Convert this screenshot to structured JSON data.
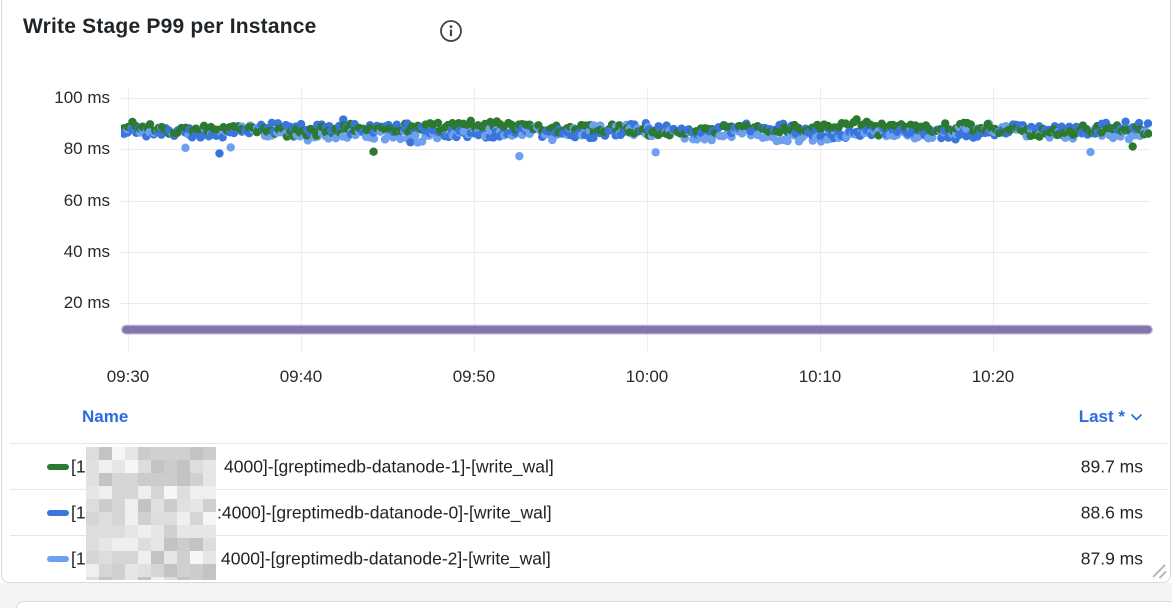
{
  "panel": {
    "title": "Write Stage P99 per Instance"
  },
  "chart_data": {
    "type": "scatter",
    "title": "Write Stage P99 per Instance",
    "x_ticks": [
      "09:30",
      "09:40",
      "09:50",
      "10:00",
      "10:10",
      "10:20"
    ],
    "y_ticks": [
      {
        "value": 100,
        "label": "100 ms"
      },
      {
        "value": 80,
        "label": "80 ms"
      },
      {
        "value": 60,
        "label": "60 ms"
      },
      {
        "value": 40,
        "label": "40 ms"
      },
      {
        "value": 20,
        "label": "20 ms"
      }
    ],
    "ylim": [
      0,
      104
    ],
    "grid": true,
    "legend_position": "bottom-table",
    "series": [
      {
        "name": "[1▒▒▒▒4000]-[greptimedb-datanode-1]-[write_wal]",
        "style": "points",
        "color": "#2c7a2f",
        "approx_mean_ms": 88.2,
        "jitter_ms": 1.7,
        "last": "89.7 ms"
      },
      {
        "name": "[1▒▒▒▒:4000]-[greptimedb-datanode-0]-[write_wal]",
        "style": "points",
        "color": "#3a75dc",
        "approx_mean_ms": 87.2,
        "jitter_ms": 1.9,
        "last": "88.6 ms"
      },
      {
        "name": "[1▒▒▒▒4000]-[greptimedb-datanode-2]-[write_wal]",
        "style": "points",
        "color": "#6ea0f0",
        "approx_mean_ms": 86.1,
        "jitter_ms": 2.0,
        "last": "87.9 ms"
      },
      {
        "name": "",
        "style": "line",
        "color": "#6d599c",
        "approx_mean_ms": 9.6,
        "last": ""
      }
    ]
  },
  "legend": {
    "name_header": "Name",
    "last_header": "Last *",
    "rows": [
      {
        "color": "#2c7a2f",
        "prefix": "[1",
        "redacted": true,
        "suffix": "4000]-[greptimedb-datanode-1]-[write_wal]",
        "value": "89.7 ms"
      },
      {
        "color": "#3a75dc",
        "prefix": "[1",
        "redacted": true,
        "suffix": ":4000]-[greptimedb-datanode-0]-[write_wal]",
        "value": "88.6 ms"
      },
      {
        "color": "#6ea0f0",
        "prefix": "[1",
        "redacted": true,
        "suffix": "4000]-[greptimedb-datanode-2]-[write_wal]",
        "value": "87.9 ms"
      }
    ]
  }
}
